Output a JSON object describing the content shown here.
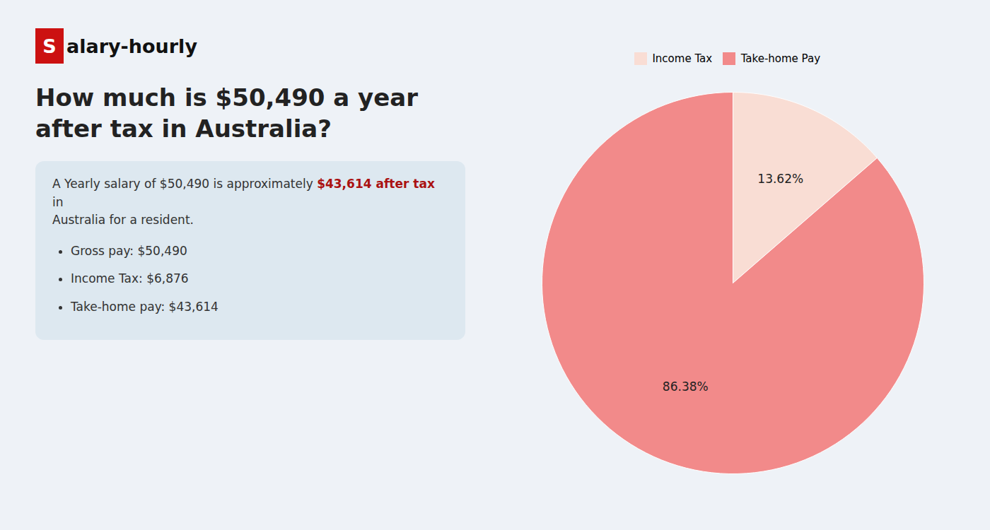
{
  "chart_data": {
    "type": "pie",
    "title": "How much is $50,490 a year after tax in Australia?",
    "annotations": [
      "S",
      "alary-hourly",
      "A Yearly salary of $50,490 is approximately ",
      "$43,614 after tax",
      " in",
      "Australia for a resident.",
      "Gross pay: $50,490",
      "Income Tax: $6,876",
      "Take-home pay: $43,614"
    ],
    "categories": [
      "Income Tax",
      "Take-home Pay"
    ],
    "values": [
      13.62,
      86.38
    ],
    "value_labels": [
      "13.62%",
      "86.38%"
    ],
    "colors": [
      "#f9ddd4",
      "#f28a8a"
    ],
    "data_labels": true,
    "legend": "top"
  }
}
